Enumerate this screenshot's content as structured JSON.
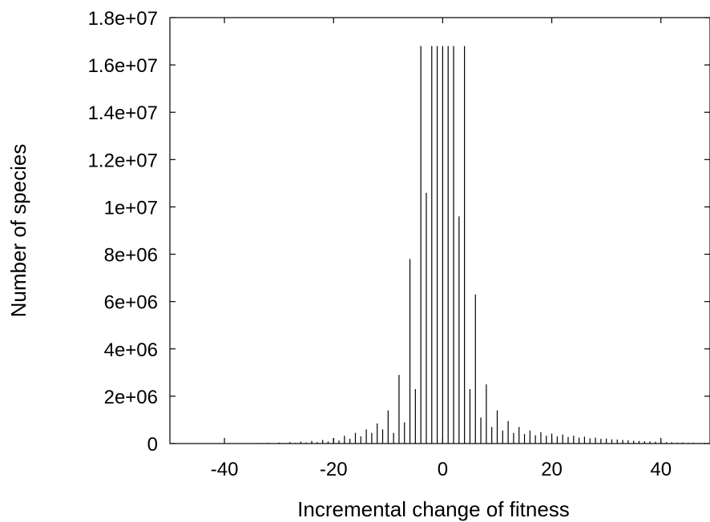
{
  "chart_data": {
    "type": "bar",
    "title": "",
    "xlabel": "Incremental change of fitness",
    "ylabel": "Number of species",
    "xlim": [
      -50,
      49
    ],
    "ylim": [
      0,
      18000000
    ],
    "xticks": [
      {
        "value": -40,
        "label": "-40"
      },
      {
        "value": -20,
        "label": "-20"
      },
      {
        "value": 0,
        "label": "0"
      },
      {
        "value": 20,
        "label": "20"
      },
      {
        "value": 40,
        "label": "40"
      }
    ],
    "yticks": [
      {
        "value": 0,
        "label": "0"
      },
      {
        "value": 2000000,
        "label": "2e+06"
      },
      {
        "value": 4000000,
        "label": "4e+06"
      },
      {
        "value": 6000000,
        "label": "6e+06"
      },
      {
        "value": 8000000,
        "label": "8e+06"
      },
      {
        "value": 10000000,
        "label": "1e+07"
      },
      {
        "value": 12000000,
        "label": "1.2e+07"
      },
      {
        "value": 14000000,
        "label": "1.4e+07"
      },
      {
        "value": 16000000,
        "label": "1.6e+07"
      },
      {
        "value": 18000000,
        "label": "1.8e+07"
      }
    ],
    "grid": false,
    "legend": "none",
    "color": "#000000",
    "x": [
      -40,
      -39,
      -38,
      -37,
      -36,
      -35,
      -34,
      -33,
      -32,
      -31,
      -30,
      -29,
      -28,
      -27,
      -26,
      -25,
      -24,
      -23,
      -22,
      -21,
      -20,
      -19,
      -18,
      -17,
      -16,
      -15,
      -14,
      -13,
      -12,
      -11,
      -10,
      -9,
      -8,
      -7,
      -6,
      -5,
      -4,
      -3,
      -2,
      -1,
      0,
      1,
      2,
      3,
      4,
      5,
      6,
      7,
      8,
      9,
      10,
      11,
      12,
      13,
      14,
      15,
      16,
      17,
      18,
      19,
      20,
      21,
      22,
      23,
      24,
      25,
      26,
      27,
      28,
      29,
      30,
      31,
      32,
      33,
      34,
      35,
      36,
      37,
      38,
      39,
      40,
      41,
      42,
      43,
      44,
      45,
      46,
      47,
      48,
      49
    ],
    "values": [
      10000,
      5000,
      12000,
      6000,
      15000,
      8000,
      20000,
      10000,
      30000,
      15000,
      40000,
      20000,
      60000,
      30000,
      80000,
      45000,
      110000,
      60000,
      150000,
      90000,
      220000,
      130000,
      330000,
      200000,
      450000,
      300000,
      600000,
      450000,
      850000,
      600000,
      1400000,
      450000,
      2900000,
      900000,
      7800000,
      2300000,
      16800000,
      10600000,
      16800000,
      16800000,
      16800000,
      16800000,
      16800000,
      9600000,
      16800000,
      2300000,
      6300000,
      1100000,
      2500000,
      700000,
      1400000,
      550000,
      950000,
      450000,
      700000,
      400000,
      550000,
      350000,
      480000,
      330000,
      420000,
      300000,
      380000,
      280000,
      330000,
      250000,
      290000,
      220000,
      250000,
      200000,
      210000,
      180000,
      170000,
      150000,
      140000,
      120000,
      110000,
      95000,
      90000,
      75000,
      70000,
      55000,
      55000,
      40000,
      45000,
      30000,
      35000,
      25000,
      25000,
      20000
    ]
  }
}
